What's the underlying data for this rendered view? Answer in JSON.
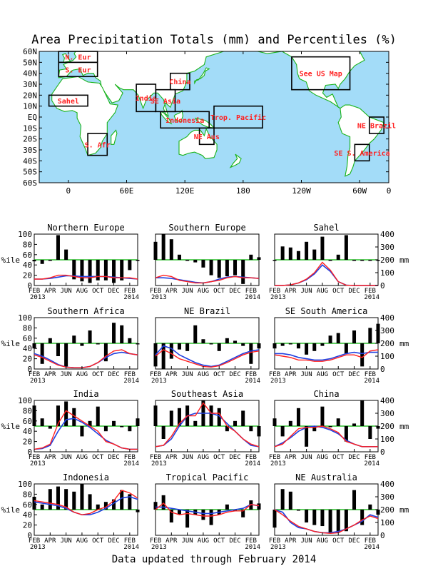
{
  "title": "Area Precipitation Totals (mm) and Percentiles (%)",
  "footer": "Data updated through February 2014",
  "colors": {
    "ocean": "#a3dcf8",
    "land": "#ffffff",
    "coast": "#19b319",
    "region_label": "#ff2020",
    "bar": "#000000",
    "line_total": "#ff2020",
    "line_normal": "#2040e0",
    "ref_line": "#00b000"
  },
  "map": {
    "lat_labels": [
      "60N",
      "50N",
      "40N",
      "30N",
      "20N",
      "10N",
      "EQ",
      "10S",
      "20S",
      "30S",
      "40S",
      "50S",
      "60S"
    ],
    "lon_labels": [
      "0",
      "60E",
      "120E",
      "180",
      "120W",
      "60W",
      "0"
    ],
    "regions": [
      {
        "label": "N. Eur",
        "lon": [
          -10,
          30
        ],
        "lat": [
          50,
          60
        ]
      },
      {
        "label": "S. Eur",
        "lon": [
          -10,
          30
        ],
        "lat": [
          37,
          50
        ]
      },
      {
        "label": "Sahel",
        "lon": [
          -20,
          20
        ],
        "lat": [
          10,
          20
        ]
      },
      {
        "label": "S. Afr",
        "lon": [
          20,
          40
        ],
        "lat": [
          -35,
          -15
        ]
      },
      {
        "label": "India",
        "lon": [
          70,
          90
        ],
        "lat": [
          5,
          30
        ]
      },
      {
        "label": "SE Asia",
        "lon": [
          90,
          110
        ],
        "lat": [
          5,
          25
        ]
      },
      {
        "label": "China",
        "lon": [
          105,
          125
        ],
        "lat": [
          25,
          40
        ]
      },
      {
        "label": "Indonesia",
        "lon": [
          95,
          145
        ],
        "lat": [
          -10,
          5
        ]
      },
      {
        "label": "Trop. Pacific",
        "lon": [
          150,
          200
        ],
        "lat": [
          -10,
          10
        ]
      },
      {
        "label": "NE Aus",
        "lon": [
          135,
          150
        ],
        "lat": [
          -25,
          -10
        ]
      },
      {
        "label": "See US Map",
        "lon": [
          230,
          290
        ],
        "lat": [
          25,
          55
        ]
      },
      {
        "label": "NE Brazil",
        "lon": [
          310,
          325
        ],
        "lat": [
          -15,
          0
        ]
      },
      {
        "label": "SE S. America",
        "lon": [
          295,
          310
        ],
        "lat": [
          -40,
          -25
        ]
      }
    ]
  },
  "chart_data": [
    {
      "type": "bar+line",
      "title": "Northern Europe",
      "months": [
        "FEB",
        "APR",
        "JUN",
        "AUG",
        "OCT",
        "DEC",
        "FEB"
      ],
      "year_start": "2013",
      "year_end": "2014",
      "y_left_label": "%ile",
      "y_left_ticks": [
        0,
        20,
        40,
        60,
        80,
        100
      ],
      "y_right_label": "mm",
      "y_right_ticks": [
        0,
        100,
        200,
        300,
        400
      ],
      "percentile_ref": 50,
      "percentiles": [
        47,
        42,
        50,
        98,
        70,
        12,
        8,
        5,
        10,
        10,
        5,
        10,
        30,
        50
      ],
      "totals_mm": [
        50,
        50,
        60,
        80,
        80,
        70,
        60,
        60,
        70,
        70,
        60,
        60,
        60,
        50
      ],
      "normals_mm": [
        50,
        50,
        55,
        65,
        75,
        75,
        70,
        70,
        70,
        70,
        65,
        60,
        55,
        50
      ]
    },
    {
      "type": "bar+line",
      "title": "Southern Europe",
      "months": [
        "FEB",
        "APR",
        "JUN",
        "AUG",
        "OCT",
        "DEC",
        "FEB"
      ],
      "year_start": "2013",
      "year_end": "2014",
      "y_left_label": "%ile",
      "y_left_ticks": [
        0,
        20,
        40,
        60,
        80,
        100
      ],
      "y_right_label": "mm",
      "y_right_ticks": [
        0,
        100,
        200,
        300,
        400
      ],
      "percentile_ref": 50,
      "percentiles": [
        85,
        100,
        90,
        60,
        50,
        45,
        35,
        20,
        15,
        18,
        20,
        3,
        60,
        55
      ],
      "totals_mm": [
        60,
        80,
        70,
        40,
        30,
        20,
        20,
        30,
        40,
        60,
        70,
        60,
        60,
        55
      ],
      "normals_mm": [
        60,
        60,
        55,
        45,
        35,
        25,
        20,
        30,
        50,
        65,
        70,
        65,
        60,
        55
      ]
    },
    {
      "type": "bar+line",
      "title": "Sahel",
      "months": [
        "FEB",
        "APR",
        "JUN",
        "AUG",
        "OCT",
        "DEC",
        "FEB"
      ],
      "year_start": "2013",
      "year_end": "2014",
      "y_left_label": "%ile",
      "y_left_ticks": [
        0,
        20,
        40,
        60,
        80,
        100
      ],
      "y_right_label": "mm",
      "y_right_ticks": [
        0,
        100,
        200,
        300,
        400
      ],
      "percentile_ref": 50,
      "percentiles": [
        48,
        76,
        74,
        67,
        85,
        70,
        95,
        48,
        60,
        98,
        50,
        50,
        50,
        50
      ],
      "totals_mm": [
        0,
        0,
        5,
        20,
        50,
        100,
        180,
        120,
        30,
        2,
        0,
        0,
        0,
        0
      ],
      "normals_mm": [
        0,
        0,
        5,
        20,
        45,
        90,
        160,
        110,
        30,
        3,
        0,
        0,
        0,
        0
      ]
    },
    {
      "type": "bar+line",
      "title": "Southern Africa",
      "months": [
        "FEB",
        "APR",
        "JUN",
        "AUG",
        "OCT",
        "DEC",
        "FEB"
      ],
      "year_start": "2013",
      "year_end": "2014",
      "y_left_label": "%ile",
      "y_left_ticks": [
        0,
        20,
        40,
        60,
        80,
        100
      ],
      "y_right_label": "mm",
      "y_right_ticks": [
        0,
        100,
        200,
        300,
        400
      ],
      "percentile_ref": 50,
      "percentiles": [
        40,
        10,
        60,
        25,
        5,
        65,
        45,
        75,
        50,
        15,
        90,
        85,
        60,
        50
      ],
      "totals_mm": [
        110,
        90,
        60,
        30,
        15,
        10,
        10,
        20,
        50,
        100,
        140,
        150,
        120,
        110
      ],
      "normals_mm": [
        120,
        100,
        70,
        35,
        15,
        10,
        10,
        20,
        50,
        90,
        120,
        130,
        120,
        110
      ]
    },
    {
      "type": "bar+line",
      "title": "NE Brazil",
      "months": [
        "FEB",
        "APR",
        "JUN",
        "AUG",
        "OCT",
        "DEC",
        "FEB"
      ],
      "year_start": "2013",
      "year_end": "2014",
      "y_left_label": "%ile",
      "y_left_ticks": [
        0,
        20,
        40,
        60,
        80,
        100
      ],
      "y_right_label": "mm",
      "y_right_ticks": [
        0,
        100,
        200,
        300,
        400
      ],
      "percentile_ref": 50,
      "percentiles": [
        5,
        0,
        20,
        38,
        35,
        85,
        58,
        48,
        35,
        60,
        55,
        45,
        10,
        40
      ],
      "totals_mm": [
        100,
        150,
        120,
        80,
        60,
        40,
        20,
        15,
        25,
        50,
        80,
        110,
        130,
        140
      ],
      "normals_mm": [
        110,
        180,
        160,
        110,
        80,
        50,
        30,
        20,
        30,
        60,
        90,
        120,
        140,
        150
      ]
    },
    {
      "type": "bar+line",
      "title": "SE South America",
      "months": [
        "FEB",
        "APR",
        "JUN",
        "AUG",
        "OCT",
        "DEC",
        "FEB"
      ],
      "year_start": "2013",
      "year_end": "2014",
      "y_left_label": "%ile",
      "y_left_ticks": [
        0,
        20,
        40,
        60,
        80,
        100
      ],
      "y_right_label": "mm",
      "y_right_ticks": [
        0,
        100,
        200,
        300,
        400
      ],
      "percentile_ref": 50,
      "percentiles": [
        40,
        45,
        50,
        40,
        28,
        35,
        45,
        65,
        70,
        30,
        75,
        5,
        80,
        88
      ],
      "totals_mm": [
        110,
        100,
        90,
        70,
        70,
        60,
        60,
        70,
        90,
        110,
        110,
        90,
        140,
        150
      ],
      "normals_mm": [
        120,
        120,
        110,
        90,
        80,
        70,
        70,
        80,
        100,
        120,
        130,
        120,
        130,
        130
      ]
    },
    {
      "type": "bar+line",
      "title": "India",
      "months": [
        "FEB",
        "APR",
        "JUN",
        "AUG",
        "OCT",
        "DEC",
        "FEB"
      ],
      "year_start": "2013",
      "year_end": "2014",
      "y_left_label": "%ile",
      "y_left_ticks": [
        0,
        20,
        40,
        60,
        80,
        100
      ],
      "y_right_label": "mm",
      "y_right_ticks": [
        0,
        100,
        200,
        300,
        400
      ],
      "percentile_ref": 50,
      "percentiles": [
        90,
        65,
        45,
        90,
        98,
        85,
        30,
        60,
        88,
        40,
        60,
        50,
        40,
        65
      ],
      "totals_mm": [
        20,
        30,
        60,
        220,
        320,
        280,
        240,
        200,
        160,
        80,
        60,
        30,
        20,
        20
      ],
      "normals_mm": [
        20,
        25,
        50,
        160,
        250,
        260,
        230,
        190,
        140,
        90,
        60,
        30,
        20,
        20
      ]
    },
    {
      "type": "bar+line",
      "title": "Southeast Asia",
      "months": [
        "FEB",
        "APR",
        "JUN",
        "AUG",
        "OCT",
        "DEC",
        "FEB"
      ],
      "year_start": "2013",
      "year_end": "2014",
      "y_left_label": "%ile",
      "y_left_ticks": [
        0,
        20,
        40,
        60,
        80,
        100
      ],
      "y_right_label": "mm",
      "y_right_ticks": [
        0,
        100,
        200,
        300,
        400
      ],
      "percentile_ref": 50,
      "percentiles": [
        90,
        25,
        80,
        85,
        90,
        60,
        100,
        90,
        85,
        40,
        60,
        80,
        40,
        30
      ],
      "totals_mm": [
        40,
        50,
        120,
        220,
        280,
        280,
        380,
        300,
        300,
        200,
        160,
        100,
        60,
        40
      ],
      "normals_mm": [
        40,
        50,
        100,
        200,
        280,
        300,
        300,
        300,
        280,
        220,
        160,
        100,
        50,
        40
      ]
    },
    {
      "type": "bar+line",
      "title": "China",
      "months": [
        "FEB",
        "APR",
        "JUN",
        "AUG",
        "OCT",
        "DEC",
        "FEB"
      ],
      "year_start": "2013",
      "year_end": "2014",
      "y_left_label": "%ile",
      "y_left_ticks": [
        0,
        20,
        40,
        60,
        80,
        100
      ],
      "y_right_label": "mm",
      "y_right_ticks": [
        0,
        100,
        200,
        300,
        400
      ],
      "percentile_ref": 50,
      "percentiles": [
        65,
        30,
        60,
        85,
        10,
        40,
        88,
        50,
        65,
        20,
        55,
        100,
        25,
        45
      ],
      "totals_mm": [
        40,
        60,
        120,
        180,
        190,
        190,
        200,
        180,
        150,
        80,
        60,
        40,
        40,
        40
      ],
      "normals_mm": [
        40,
        70,
        110,
        160,
        190,
        200,
        190,
        170,
        140,
        90,
        60,
        40,
        40,
        40
      ]
    },
    {
      "type": "bar+line",
      "title": "Indonesia",
      "months": [
        "FEB",
        "APR",
        "JUN",
        "AUG",
        "OCT",
        "DEC",
        "FEB"
      ],
      "year_start": "2013",
      "year_end": "2014",
      "y_left_label": "%ile",
      "y_left_ticks": [
        0,
        20,
        40,
        60,
        80,
        100
      ],
      "y_right_label": "mm",
      "y_right_ticks": [
        0,
        100,
        200,
        300,
        400
      ],
      "percentile_ref": 50,
      "percentiles": [
        75,
        60,
        90,
        95,
        90,
        85,
        100,
        80,
        60,
        65,
        70,
        88,
        80,
        45
      ],
      "totals_mm": [
        270,
        260,
        250,
        240,
        220,
        180,
        160,
        170,
        200,
        220,
        270,
        350,
        330,
        290
      ],
      "normals_mm": [
        260,
        250,
        240,
        230,
        210,
        180,
        160,
        160,
        180,
        210,
        250,
        290,
        300,
        280
      ]
    },
    {
      "type": "bar+line",
      "title": "Tropical Pacific",
      "months": [
        "FEB",
        "APR",
        "JUN",
        "AUG",
        "OCT",
        "DEC",
        "FEB"
      ],
      "year_start": "2013",
      "year_end": "2014",
      "y_left_label": "%ile",
      "y_left_ticks": [
        0,
        20,
        40,
        60,
        80,
        100
      ],
      "y_right_label": "mm",
      "y_right_ticks": [
        0,
        100,
        200,
        300,
        400
      ],
      "percentile_ref": 50,
      "percentiles": [
        65,
        78,
        25,
        40,
        15,
        40,
        30,
        20,
        40,
        60,
        50,
        35,
        68,
        62
      ],
      "totals_mm": [
        200,
        250,
        180,
        160,
        170,
        160,
        150,
        150,
        160,
        180,
        190,
        190,
        240,
        230
      ],
      "normals_mm": [
        220,
        220,
        210,
        200,
        190,
        180,
        170,
        170,
        180,
        190,
        200,
        210,
        240,
        230
      ]
    },
    {
      "type": "bar+line",
      "title": "NE Australia",
      "months": [
        "FEB",
        "APR",
        "JUN",
        "AUG",
        "OCT",
        "DEC",
        "FEB"
      ],
      "year_start": "2013",
      "year_end": "2014",
      "y_left_label": "%ile",
      "y_left_ticks": [
        0,
        20,
        40,
        60,
        80,
        100
      ],
      "y_right_label": "mm",
      "y_right_ticks": [
        0,
        100,
        200,
        300,
        400
      ],
      "percentile_ref": 50,
      "percentiles": [
        15,
        90,
        85,
        50,
        25,
        20,
        18,
        5,
        5,
        8,
        88,
        20,
        60,
        40
      ],
      "totals_mm": [
        200,
        160,
        110,
        70,
        50,
        30,
        20,
        15,
        20,
        50,
        80,
        120,
        150,
        130
      ],
      "normals_mm": [
        200,
        180,
        100,
        60,
        50,
        30,
        20,
        20,
        30,
        50,
        80,
        110,
        160,
        140
      ]
    }
  ]
}
